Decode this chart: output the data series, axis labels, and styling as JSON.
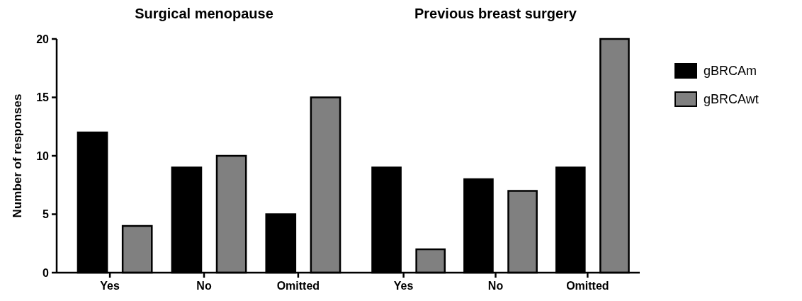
{
  "chart_data": [
    {
      "type": "bar",
      "title": "Surgical menopause",
      "ylabel": "Number of responses",
      "categories": [
        "Yes",
        "No",
        "Omitted"
      ],
      "series": [
        {
          "color": "#000000",
          "values": [
            12,
            9,
            5
          ]
        },
        {
          "color": "#808080",
          "values": [
            4,
            10,
            15
          ]
        }
      ],
      "ylim": [
        0,
        20
      ],
      "yticks": [
        0,
        5,
        10,
        15,
        20
      ]
    },
    {
      "type": "bar",
      "title": "Previous breast surgery",
      "categories": [
        "Yes",
        "No",
        "Omitted"
      ],
      "series": [
        {
          "name": "gBRCAm",
          "color": "#000000",
          "values": [
            9,
            8,
            9
          ]
        },
        {
          "name": "gBRCAwt",
          "color": "#808080",
          "values": [
            2,
            7,
            20
          ]
        }
      ],
      "ylim": [
        0,
        20
      ],
      "yticks": [
        0,
        5,
        10,
        15,
        20
      ],
      "legend": "right",
      "tick_labels": "x"
    }
  ]
}
